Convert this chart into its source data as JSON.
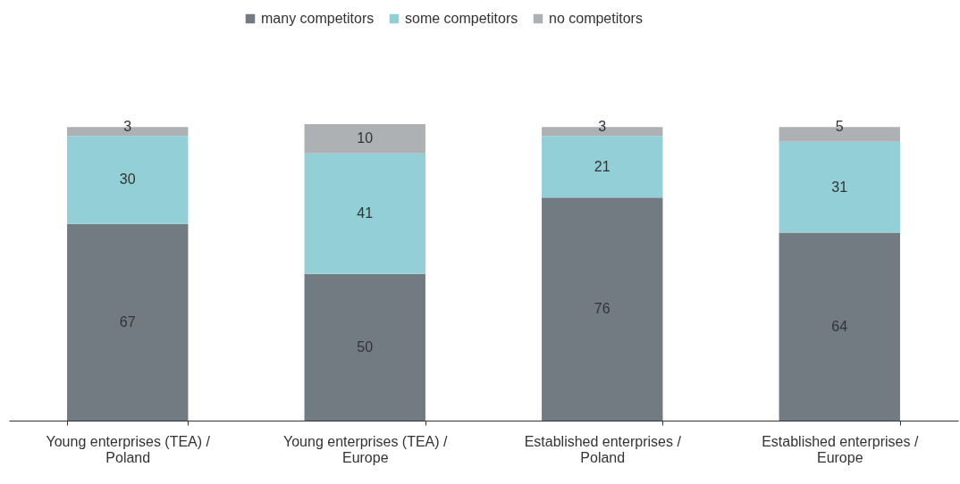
{
  "chart_data": {
    "type": "bar",
    "stacked": true,
    "data_labels": true,
    "legend": "top",
    "grid": false,
    "categories": [
      "Young enterprises (TEA) / Poland",
      "Young enterprises (TEA) / Europe",
      "Established enterprises / Poland",
      "Established enterprises / Europe"
    ],
    "series": [
      {
        "name": "many competitors",
        "color": "#737b82",
        "values": [
          67,
          50,
          76,
          64
        ]
      },
      {
        "name": "some competitors",
        "color": "#92cfd6",
        "values": [
          30,
          41,
          21,
          31
        ]
      },
      {
        "name": "no competitors",
        "color": "#aeb1b4",
        "values": [
          3,
          10,
          3,
          5
        ]
      }
    ]
  }
}
